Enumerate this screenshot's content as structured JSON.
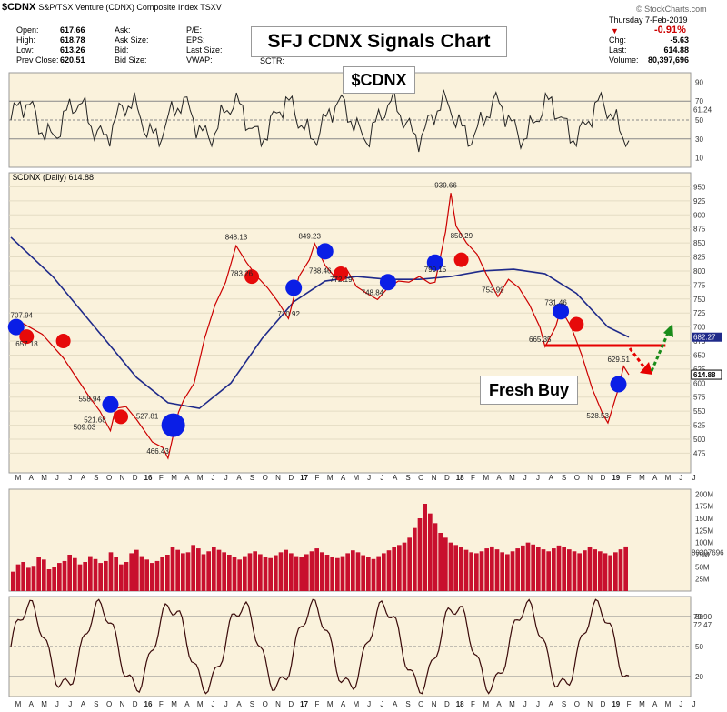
{
  "header": {
    "symbol": "$CDNX",
    "description": "S&P/TSX Venture (CDNX) Composite Index  TSXV",
    "date": "Thursday  7-Feb-2019",
    "stockcharts": "© StockCharts.com",
    "fields": [
      {
        "label": "Open:",
        "value": "617.66"
      },
      {
        "label": "High:",
        "value": "618.78"
      },
      {
        "label": "Low:",
        "value": "613.26"
      },
      {
        "label": "Prev Close:",
        "value": "620.51"
      }
    ],
    "mid_labels_1": [
      "Ask:",
      "Ask Size:",
      "Bid:",
      "Bid Size:"
    ],
    "mid_labels_2": [
      "P/E:",
      "EPS:",
      "Last Size:",
      "VWAP:"
    ],
    "sctr": "SCTR:",
    "change_pct": "-0.91%",
    "right_fields": [
      {
        "label": "Chg:",
        "value": "-5.63"
      },
      {
        "label": "Last:",
        "value": "614.88"
      },
      {
        "label": "Volume:",
        "value": "80,397,696"
      }
    ]
  },
  "annotations": {
    "title": "SFJ CDNX Signals Chart",
    "ticker": "$CDNX",
    "fresh_buy": "Fresh Buy"
  },
  "colors": {
    "price_line": "#cc0000",
    "moving_average": "#1f2a8a",
    "buy_signal": "#0a1ee6",
    "sell_signal": "#e60a0a",
    "support_line": "#e60000",
    "projection_down": "#e60000",
    "projection_up": "#1a8c1a",
    "panel_bg": "#faf2dc",
    "rsi_overbought_fill": "#5c7a3a",
    "rsi_oversold_fill": "#7a4a3a",
    "volume_bar": "#c8102e"
  },
  "chart_data": [
    {
      "type": "line",
      "name_label": "$CDNX",
      "panel": "rsi-top",
      "y_ticks": [
        10,
        30,
        50,
        70,
        90
      ],
      "ylim": [
        0,
        100
      ],
      "current_label": "61.24",
      "reference_lines": [
        30,
        50,
        70
      ]
    },
    {
      "type": "line",
      "panel": "price",
      "legend": "$CDNX (Daily) 614.88",
      "ylim": [
        440,
        975
      ],
      "y_ticks": [
        475,
        500,
        525,
        550,
        575,
        600,
        625,
        650,
        675,
        700,
        725,
        750,
        775,
        800,
        825,
        850,
        875,
        900,
        925,
        950
      ],
      "current_price_label": "614.88",
      "current_ma_label": "682.27",
      "x_axis_labels": [
        "M",
        "A",
        "M",
        "J",
        "J",
        "A",
        "S",
        "O",
        "N",
        "D",
        "16",
        "F",
        "M",
        "A",
        "M",
        "J",
        "J",
        "A",
        "S",
        "O",
        "N",
        "D",
        "17",
        "F",
        "M",
        "A",
        "M",
        "J",
        "J",
        "A",
        "S",
        "O",
        "N",
        "D",
        "18",
        "F",
        "M",
        "A",
        "M",
        "J",
        "J",
        "A",
        "S",
        "O",
        "N",
        "D",
        "19",
        "F",
        "M",
        "A",
        "M",
        "J",
        "J"
      ],
      "price_points": [
        {
          "x": 0,
          "y": 700
        },
        {
          "x": 2,
          "y": 708
        },
        {
          "x": 6,
          "y": 687
        },
        {
          "x": 10,
          "y": 645
        },
        {
          "x": 15,
          "y": 575
        },
        {
          "x": 17,
          "y": 550
        },
        {
          "x": 19,
          "y": 515
        },
        {
          "x": 20,
          "y": 555
        },
        {
          "x": 22,
          "y": 558
        },
        {
          "x": 24,
          "y": 535
        },
        {
          "x": 27,
          "y": 495
        },
        {
          "x": 29,
          "y": 485
        },
        {
          "x": 30,
          "y": 466
        },
        {
          "x": 32,
          "y": 548
        },
        {
          "x": 33,
          "y": 570
        },
        {
          "x": 35,
          "y": 600
        },
        {
          "x": 37,
          "y": 680
        },
        {
          "x": 39,
          "y": 740
        },
        {
          "x": 41,
          "y": 780
        },
        {
          "x": 43,
          "y": 845
        },
        {
          "x": 45,
          "y": 815
        },
        {
          "x": 47,
          "y": 790
        },
        {
          "x": 49,
          "y": 770
        },
        {
          "x": 51,
          "y": 745
        },
        {
          "x": 53,
          "y": 715
        },
        {
          "x": 55,
          "y": 790
        },
        {
          "x": 57,
          "y": 820
        },
        {
          "x": 58,
          "y": 849
        },
        {
          "x": 60,
          "y": 810
        },
        {
          "x": 62,
          "y": 788
        },
        {
          "x": 64,
          "y": 805
        },
        {
          "x": 66,
          "y": 772
        },
        {
          "x": 68,
          "y": 760
        },
        {
          "x": 70,
          "y": 749
        },
        {
          "x": 72,
          "y": 770
        },
        {
          "x": 74,
          "y": 782
        },
        {
          "x": 76,
          "y": 780
        },
        {
          "x": 78,
          "y": 790
        },
        {
          "x": 80,
          "y": 778
        },
        {
          "x": 81,
          "y": 780
        },
        {
          "x": 83,
          "y": 870
        },
        {
          "x": 84,
          "y": 939
        },
        {
          "x": 85,
          "y": 880
        },
        {
          "x": 87,
          "y": 850
        },
        {
          "x": 89,
          "y": 830
        },
        {
          "x": 91,
          "y": 790
        },
        {
          "x": 93,
          "y": 754
        },
        {
          "x": 95,
          "y": 785
        },
        {
          "x": 97,
          "y": 770
        },
        {
          "x": 99,
          "y": 740
        },
        {
          "x": 101,
          "y": 700
        },
        {
          "x": 102,
          "y": 665
        },
        {
          "x": 104,
          "y": 700
        },
        {
          "x": 105,
          "y": 732
        },
        {
          "x": 107,
          "y": 700
        },
        {
          "x": 109,
          "y": 650
        },
        {
          "x": 111,
          "y": 590
        },
        {
          "x": 113,
          "y": 545
        },
        {
          "x": 114,
          "y": 529
        },
        {
          "x": 116,
          "y": 590
        },
        {
          "x": 117,
          "y": 630
        },
        {
          "x": 118,
          "y": 615
        }
      ],
      "ma_points": [
        {
          "x": 0,
          "y": 860
        },
        {
          "x": 8,
          "y": 790
        },
        {
          "x": 16,
          "y": 700
        },
        {
          "x": 24,
          "y": 610
        },
        {
          "x": 30,
          "y": 565
        },
        {
          "x": 36,
          "y": 555
        },
        {
          "x": 42,
          "y": 600
        },
        {
          "x": 48,
          "y": 680
        },
        {
          "x": 54,
          "y": 745
        },
        {
          "x": 60,
          "y": 782
        },
        {
          "x": 66,
          "y": 790
        },
        {
          "x": 72,
          "y": 785
        },
        {
          "x": 78,
          "y": 785
        },
        {
          "x": 84,
          "y": 790
        },
        {
          "x": 90,
          "y": 800
        },
        {
          "x": 96,
          "y": 803
        },
        {
          "x": 102,
          "y": 795
        },
        {
          "x": 108,
          "y": 760
        },
        {
          "x": 114,
          "y": 700
        },
        {
          "x": 118,
          "y": 682
        }
      ],
      "value_labels": [
        {
          "x": 2,
          "y": 708,
          "text": "707.94"
        },
        {
          "x": 3,
          "y": 657,
          "text": "657.18"
        },
        {
          "x": 15,
          "y": 559,
          "text": "558.94"
        },
        {
          "x": 16,
          "y": 522,
          "text": "521.68"
        },
        {
          "x": 14,
          "y": 509,
          "text": "509.03"
        },
        {
          "x": 26,
          "y": 528,
          "text": "527.81"
        },
        {
          "x": 28,
          "y": 466,
          "text": "466.43"
        },
        {
          "x": 43,
          "y": 848,
          "text": "848.13"
        },
        {
          "x": 44,
          "y": 783,
          "text": "783.26"
        },
        {
          "x": 53,
          "y": 711,
          "text": "710.92"
        },
        {
          "x": 57,
          "y": 849,
          "text": "849.23"
        },
        {
          "x": 59,
          "y": 788,
          "text": "788.46"
        },
        {
          "x": 63,
          "y": 772,
          "text": "772.19"
        },
        {
          "x": 69,
          "y": 749,
          "text": "748.84"
        },
        {
          "x": 83,
          "y": 940,
          "text": "939.66"
        },
        {
          "x": 86,
          "y": 850,
          "text": "850.29"
        },
        {
          "x": 81,
          "y": 790,
          "text": "790.15"
        },
        {
          "x": 92,
          "y": 754,
          "text": "753.99"
        },
        {
          "x": 104,
          "y": 731,
          "text": "731.46"
        },
        {
          "x": 101,
          "y": 665,
          "text": "665.35"
        },
        {
          "x": 116,
          "y": 630,
          "text": "629.51"
        },
        {
          "x": 112,
          "y": 529,
          "text": "528.53"
        }
      ],
      "buy_signals": [
        {
          "x": 1,
          "y": 700
        },
        {
          "x": 19,
          "y": 562
        },
        {
          "x": 31,
          "y": 525
        },
        {
          "x": 54,
          "y": 770
        },
        {
          "x": 60,
          "y": 835
        },
        {
          "x": 72,
          "y": 780
        },
        {
          "x": 81,
          "y": 815
        },
        {
          "x": 105,
          "y": 728
        },
        {
          "x": 116,
          "y": 598
        }
      ],
      "sell_signals": [
        {
          "x": 3,
          "y": 683
        },
        {
          "x": 10,
          "y": 675
        },
        {
          "x": 21,
          "y": 540
        },
        {
          "x": 46,
          "y": 790
        },
        {
          "x": 63,
          "y": 795
        },
        {
          "x": 86,
          "y": 820
        },
        {
          "x": 108,
          "y": 705
        }
      ],
      "support_line": {
        "x_start": 102,
        "x_end": 125,
        "y": 667
      }
    },
    {
      "type": "bar",
      "panel": "volume",
      "y_ticks": [
        "25M",
        "50M",
        "75M",
        "100M",
        "125M",
        "150M",
        "175M",
        "200M"
      ],
      "ylim": [
        0,
        210
      ],
      "current_label": "80397696",
      "values": [
        40,
        55,
        60,
        48,
        52,
        70,
        65,
        45,
        50,
        58,
        62,
        75,
        68,
        55,
        60,
        72,
        66,
        58,
        62,
        80,
        70,
        55,
        60,
        78,
        85,
        72,
        65,
        58,
        62,
        70,
        75,
        90,
        85,
        78,
        80,
        95,
        88,
        76,
        82,
        90,
        85,
        80,
        75,
        70,
        65,
        72,
        78,
        82,
        76,
        70,
        68,
        74,
        80,
        85,
        78,
        72,
        70,
        76,
        82,
        88,
        80,
        75,
        70,
        68,
        72,
        78,
        84,
        80,
        74,
        70,
        66,
        72,
        78,
        84,
        90,
        95,
        100,
        110,
        130,
        150,
        180,
        160,
        140,
        120,
        110,
        100,
        95,
        90,
        85,
        80,
        78,
        82,
        88,
        92,
        86,
        80,
        76,
        82,
        88,
        94,
        100,
        96,
        90,
        86,
        82,
        88,
        94,
        90,
        86,
        82,
        78,
        84,
        90,
        86,
        82,
        78,
        74,
        80,
        86,
        92
      ]
    },
    {
      "type": "line",
      "panel": "stochastic",
      "y_ticks": [
        20,
        50,
        80
      ],
      "ylim": [
        0,
        100
      ],
      "current_labels": [
        "79.90",
        "72.47"
      ],
      "reference_lines": [
        20,
        50,
        80
      ]
    }
  ]
}
